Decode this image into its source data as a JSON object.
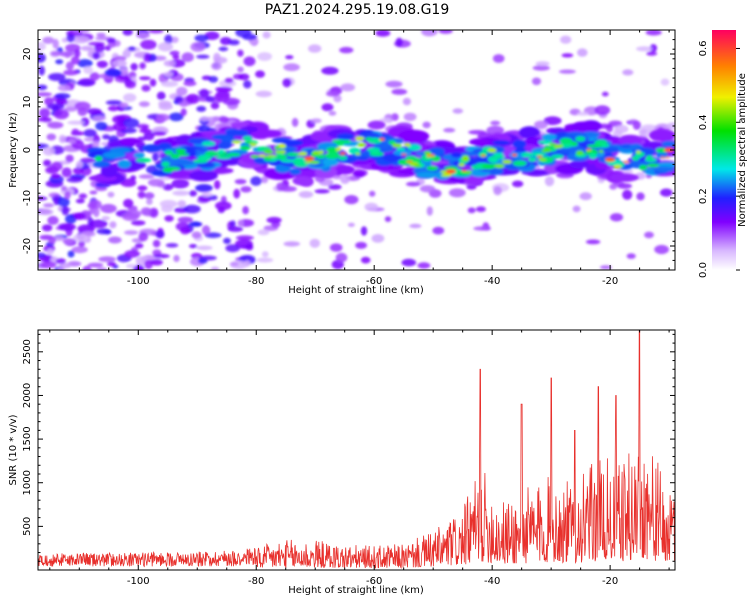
{
  "title": "PAZ1.2024.295.19.08.G19",
  "chart_data": [
    {
      "type": "heatmap",
      "xlabel": "Height of straight line (km)",
      "ylabel": "Frequency (Hz)",
      "xlim": [
        -117,
        -9
      ],
      "ylim": [
        -25,
        25
      ],
      "xticks": [
        -100,
        -80,
        -60,
        -40,
        -20
      ],
      "xtick_labels": [
        "-100",
        "-80",
        "-60",
        "-40",
        "-20"
      ],
      "yticks": [
        20,
        10,
        0,
        -10,
        -20
      ],
      "ytick_labels": [
        "20",
        "10",
        "0",
        "-10",
        "-20"
      ],
      "colorbar": {
        "label": "Normalized spectral amplitude",
        "range": [
          0,
          0.65
        ],
        "ticks": [
          0.0,
          0.2,
          0.4,
          0.6
        ],
        "tick_labels": [
          "0.0",
          "0.2",
          "0.4",
          "0.6"
        ]
      },
      "ridge": {
        "x": [
          -107,
          -100,
          -92,
          -84,
          -78,
          -72,
          -66,
          -60,
          -54,
          -48,
          -42,
          -36,
          -30,
          -24,
          -18,
          -12,
          -9
        ],
        "y": [
          -3,
          -2.5,
          -2,
          1,
          0,
          -2,
          0,
          1,
          -1,
          -4,
          -2,
          -1,
          0,
          1,
          -2,
          -2,
          0
        ]
      }
    },
    {
      "type": "line",
      "xlabel": "Height of straight line (km)",
      "ylabel": "SNR (10 * v/v)",
      "xlim": [
        -117,
        -9
      ],
      "ylim": [
        0,
        2750
      ],
      "xticks": [
        -100,
        -80,
        -60,
        -40,
        -20
      ],
      "xtick_labels": [
        "-100",
        "-80",
        "-60",
        "-40",
        "-20"
      ],
      "yticks": [
        500,
        1000,
        1500,
        2000,
        2500
      ],
      "ytick_labels": [
        "500",
        "1000",
        "1500",
        "2000",
        "2500"
      ],
      "envelope": {
        "x": [
          -117,
          -100,
          -90,
          -82,
          -76,
          -70,
          -66,
          -60,
          -55,
          -50,
          -45,
          -42,
          -38,
          -34,
          -30,
          -26,
          -22,
          -18,
          -14,
          -10
        ],
        "y": [
          150,
          160,
          170,
          200,
          350,
          350,
          300,
          280,
          300,
          450,
          700,
          1200,
          800,
          950,
          1100,
          1000,
          1300,
          1250,
          1600,
          900
        ]
      },
      "peaks": {
        "x": [
          -42,
          -35,
          -30,
          -26,
          -22,
          -19,
          -15
        ],
        "y": [
          2300,
          1900,
          2200,
          1600,
          2100,
          2000,
          2750
        ]
      },
      "color": "#e8302c"
    }
  ]
}
